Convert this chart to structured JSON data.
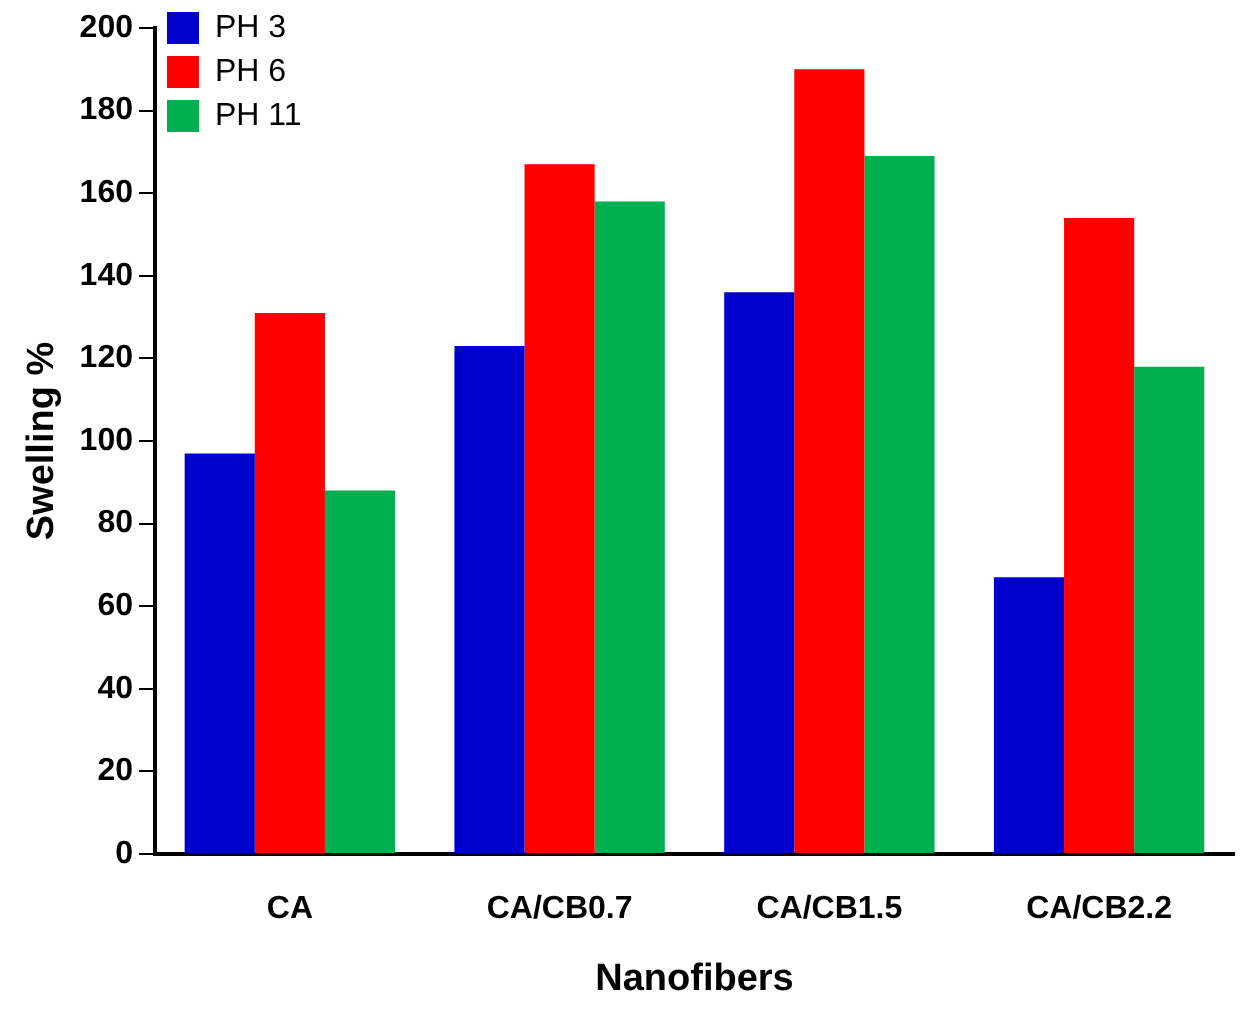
{
  "chart_data": {
    "type": "bar",
    "xlabel": "Nanofibers",
    "ylabel": "Swelling %",
    "categories": [
      "CA",
      "CA/CB0.7",
      "CA/CB1.5",
      "CA/CB2.2"
    ],
    "series": [
      {
        "name": "PH 3",
        "color": "#0000cc",
        "values": [
          97,
          123,
          136,
          67
        ]
      },
      {
        "name": "PH 6",
        "color": "#ff0000",
        "values": [
          131,
          167,
          190,
          154
        ]
      },
      {
        "name": "PH 11",
        "color": "#00b050",
        "values": [
          88,
          158,
          169,
          118
        ]
      }
    ],
    "ylim": [
      0,
      200
    ],
    "yticks": [
      0,
      20,
      40,
      60,
      80,
      100,
      120,
      140,
      160,
      180,
      200
    ],
    "grid": false,
    "legend": "top left"
  }
}
